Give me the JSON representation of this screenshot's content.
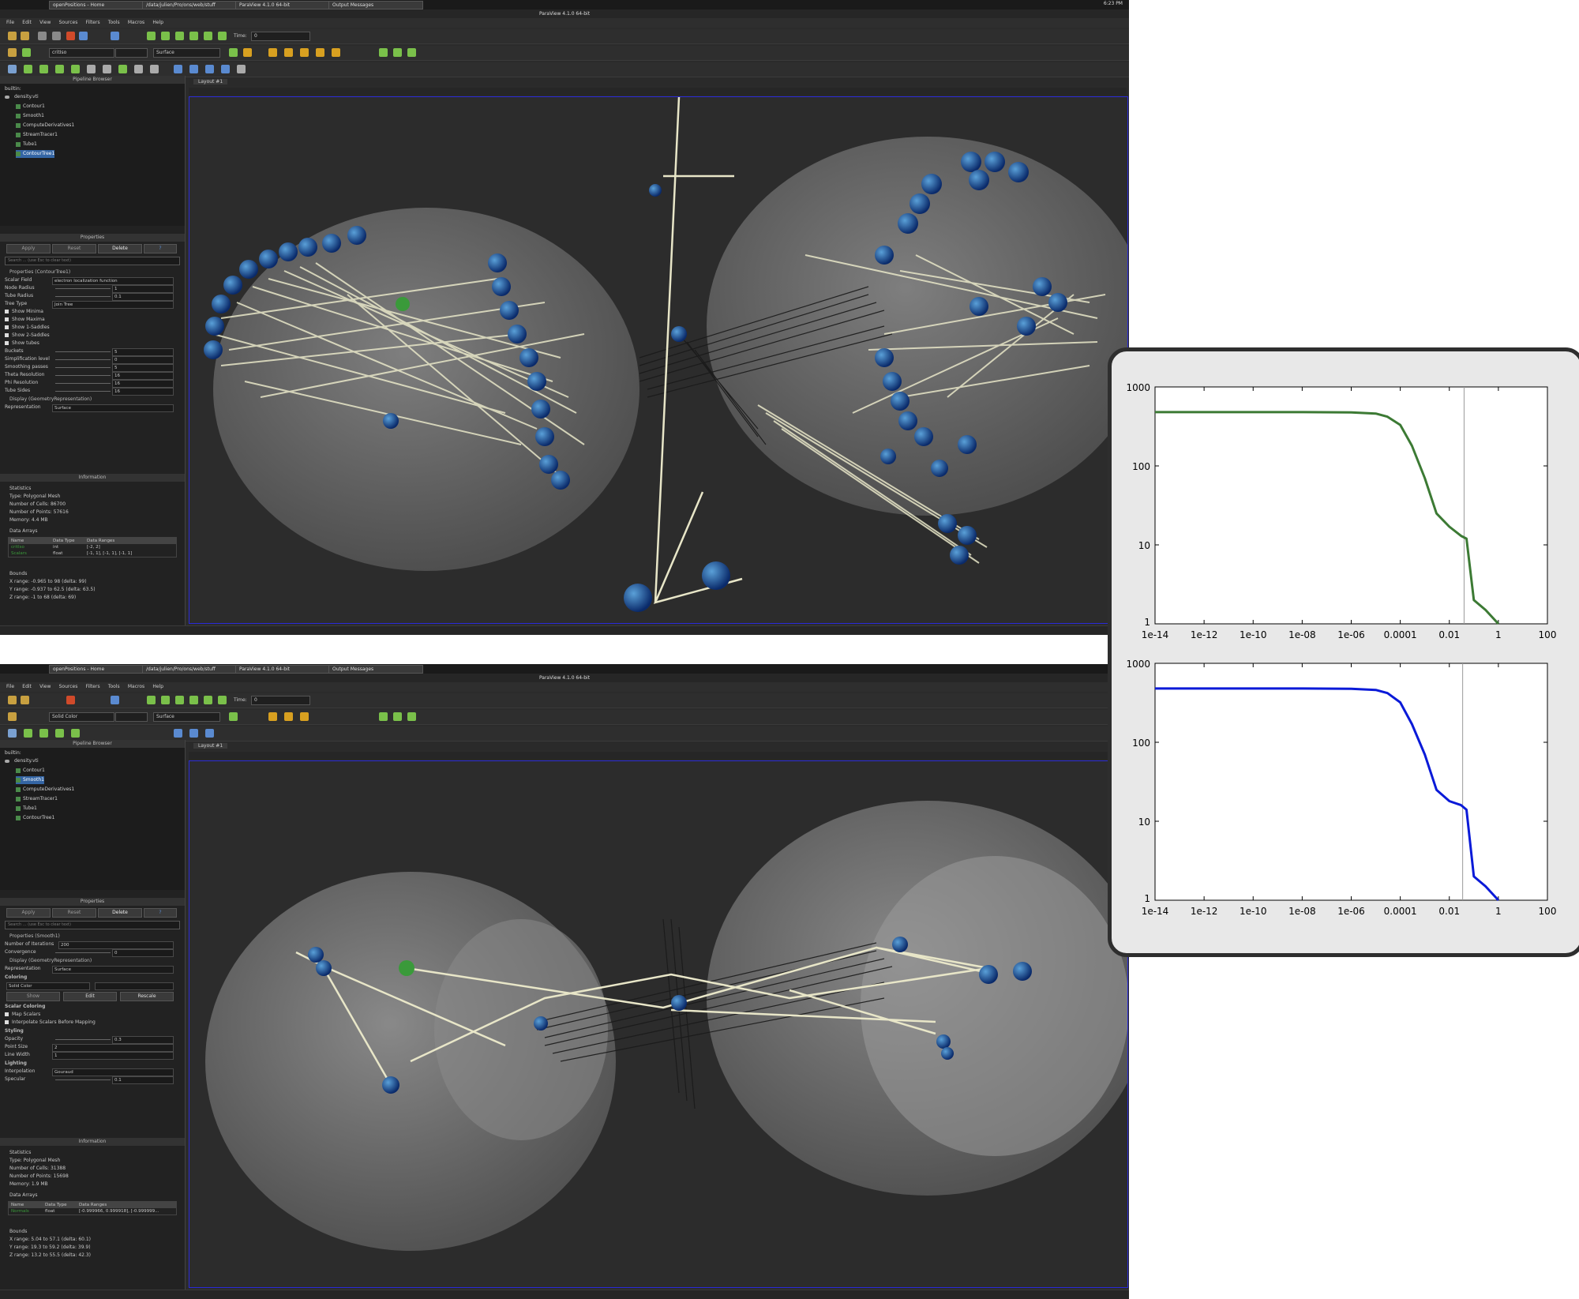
{
  "taskbar": {
    "tabs": [
      "openPositions - Home",
      "/data/julien/Pro/ons/web/stuff",
      "ParaView 4.1.0 64-bit",
      "Output Messages"
    ],
    "clock": "6:23 PM"
  },
  "window_title": "ParaView 4.1.0 64-bit",
  "menu": [
    "File",
    "Edit",
    "View",
    "Sources",
    "Filters",
    "Tools",
    "Macros",
    "Help"
  ],
  "toolbar": {
    "time_label": "Time:",
    "time_value": "0",
    "representation": "Surface"
  },
  "pipeline_browser_title": "Pipeline Browser",
  "properties_title": "Properties",
  "information_title": "Information",
  "layout_tab": "Layout #1",
  "buttons": {
    "apply": "Apply",
    "reset": "Reset",
    "delete": "Delete",
    "help": "?"
  },
  "search_placeholder": "Search ... (use Esc to clear text)",
  "windows": [
    {
      "color_by": "critIso",
      "pipeline": [
        "builtin:",
        "density.vti",
        "Contour1",
        "Smooth1",
        "ComputeDerivatives1",
        "StreamTracer1",
        "Tube1",
        "ContourTree1"
      ],
      "selected": 7,
      "props_header": "Properties (ContourTree1)",
      "props": [
        {
          "label": "Scalar Field",
          "value": "electron localization function"
        },
        {
          "label": "Node Radius",
          "value": "1"
        },
        {
          "label": "Tube Radius",
          "value": "0.1"
        },
        {
          "label": "Tree Type",
          "value": "Join Tree"
        }
      ],
      "checks": [
        "Show Minima",
        "Show Maxima",
        "Show 1-Saddles",
        "Show 2-Saddles",
        "Show tubes"
      ],
      "props2": [
        {
          "label": "Buckets",
          "value": "5"
        },
        {
          "label": "Simplification level",
          "value": "0"
        },
        {
          "label": "Smoothing passes",
          "value": "5"
        },
        {
          "label": "Theta Resolution",
          "value": "16"
        },
        {
          "label": "Phi Resolution",
          "value": "16"
        },
        {
          "label": "Tube Sides",
          "value": "16"
        }
      ],
      "display_header": "Display (GeometryRepresentation)",
      "representation_label": "Representation",
      "representation_value": "Surface",
      "stats_title": "Statistics",
      "stats": [
        {
          "label": "Type:",
          "value": "Polygonal Mesh"
        },
        {
          "label": "Number of Cells:",
          "value": "86700"
        },
        {
          "label": "Number of Points:",
          "value": "57616"
        },
        {
          "label": "Memory:",
          "value": "4.4 MB"
        }
      ],
      "arrays_title": "Data Arrays",
      "arrays_header": [
        "Name",
        "Data Type",
        "Data Ranges"
      ],
      "arrays": [
        {
          "name": "critIso",
          "type": "int",
          "range": "[-2, 2]"
        },
        {
          "name": "Scalars",
          "type": "float",
          "range": "[-1, 1], [-1, 1], [-1, 1]"
        }
      ],
      "bounds_title": "Bounds",
      "bounds": [
        "X range: -0.965 to 98 (delta: 99)",
        "Y range: -0.937 to 62.5 (delta: 63.5)",
        "Z range: -1 to 68 (delta: 69)"
      ]
    },
    {
      "color_by": "Solid Color",
      "pipeline": [
        "builtin:",
        "density.vti",
        "Contour1",
        "Smooth1",
        "ComputeDerivatives1",
        "StreamTracer1",
        "Tube1",
        "ContourTree1"
      ],
      "selected": 3,
      "props_header": "Properties (Smooth1)",
      "props": [
        {
          "label": "Number of Iterations",
          "value": "200"
        },
        {
          "label": "Convergence",
          "value": "0"
        }
      ],
      "display_header": "Display (GeometryRepresentation)",
      "representation_label": "Representation",
      "representation_value": "Surface",
      "coloring_title": "Coloring",
      "coloring_value": "Solid Color",
      "coloring_buttons": [
        "Show",
        "Edit",
        "Rescale"
      ],
      "scalar_coloring_title": "Scalar Coloring",
      "scalar_checks": [
        "Map Scalars",
        "Interpolate Scalars Before Mapping"
      ],
      "styling_title": "Styling",
      "styling": [
        {
          "label": "Opacity",
          "value": "0.3"
        },
        {
          "label": "Point Size",
          "value": "2"
        },
        {
          "label": "Line Width",
          "value": "1"
        }
      ],
      "lighting_title": "Lighting",
      "lighting": [
        {
          "label": "Interpolation",
          "value": "Gouraud"
        },
        {
          "label": "Specular",
          "value": "0.1"
        }
      ],
      "stats_title": "Statistics",
      "stats": [
        {
          "label": "Type:",
          "value": "Polygonal Mesh"
        },
        {
          "label": "Number of Cells:",
          "value": "31388"
        },
        {
          "label": "Number of Points:",
          "value": "15698"
        },
        {
          "label": "Memory:",
          "value": "1.9 MB"
        }
      ],
      "arrays_title": "Data Arrays",
      "arrays_header": [
        "Name",
        "Data Type",
        "Data Ranges"
      ],
      "arrays": [
        {
          "name": "Normals",
          "type": "float",
          "range": "[-0.999966, 0.999918], [-0.999999..."
        }
      ],
      "bounds_title": "Bounds",
      "bounds": [
        "X range: 5.04 to 57.1 (delta: 60.1)",
        "Y range: 19.3 to 59.2 (delta: 39.9)",
        "Z range: 13.2 to 55.5 (delta: 42.3)"
      ]
    }
  ],
  "chart_data": [
    {
      "type": "line",
      "xscale": "log",
      "yscale": "log",
      "xlim": [
        1e-14,
        100
      ],
      "ylim": [
        1,
        1000
      ],
      "xtick_labels": [
        "1e-14",
        "1e-12",
        "1e-10",
        "1e-08",
        "1e-06",
        "0.0001",
        "0.01",
        "1",
        "100"
      ],
      "ytick_labels": [
        "1",
        "10",
        "100",
        "1000"
      ],
      "color": "#3c7a34",
      "vline_x": 0.04,
      "x": [
        1e-14,
        1e-08,
        1e-06,
        1e-05,
        3e-05,
        0.0001,
        0.0003,
        0.001,
        0.003,
        0.01,
        0.03,
        0.05,
        0.1,
        0.3,
        1
      ],
      "y": [
        480,
        480,
        475,
        460,
        420,
        330,
        180,
        70,
        25,
        17,
        13,
        12,
        2,
        1.5,
        1
      ]
    },
    {
      "type": "line",
      "xscale": "log",
      "yscale": "log",
      "xlim": [
        1e-14,
        100
      ],
      "ylim": [
        1,
        1000
      ],
      "xtick_labels": [
        "1e-14",
        "1e-12",
        "1e-10",
        "1e-08",
        "1e-06",
        "0.0001",
        "0.01",
        "1",
        "100"
      ],
      "ytick_labels": [
        "1",
        "10",
        "100",
        "1000"
      ],
      "color": "#0a1ad8",
      "vline_x": 0.035,
      "x": [
        1e-14,
        1e-08,
        1e-06,
        1e-05,
        3e-05,
        0.0001,
        0.0003,
        0.001,
        0.003,
        0.01,
        0.03,
        0.05,
        0.1,
        0.3,
        1
      ],
      "y": [
        480,
        480,
        475,
        460,
        420,
        320,
        170,
        70,
        25,
        18,
        16,
        14,
        2,
        1.5,
        1
      ]
    }
  ]
}
